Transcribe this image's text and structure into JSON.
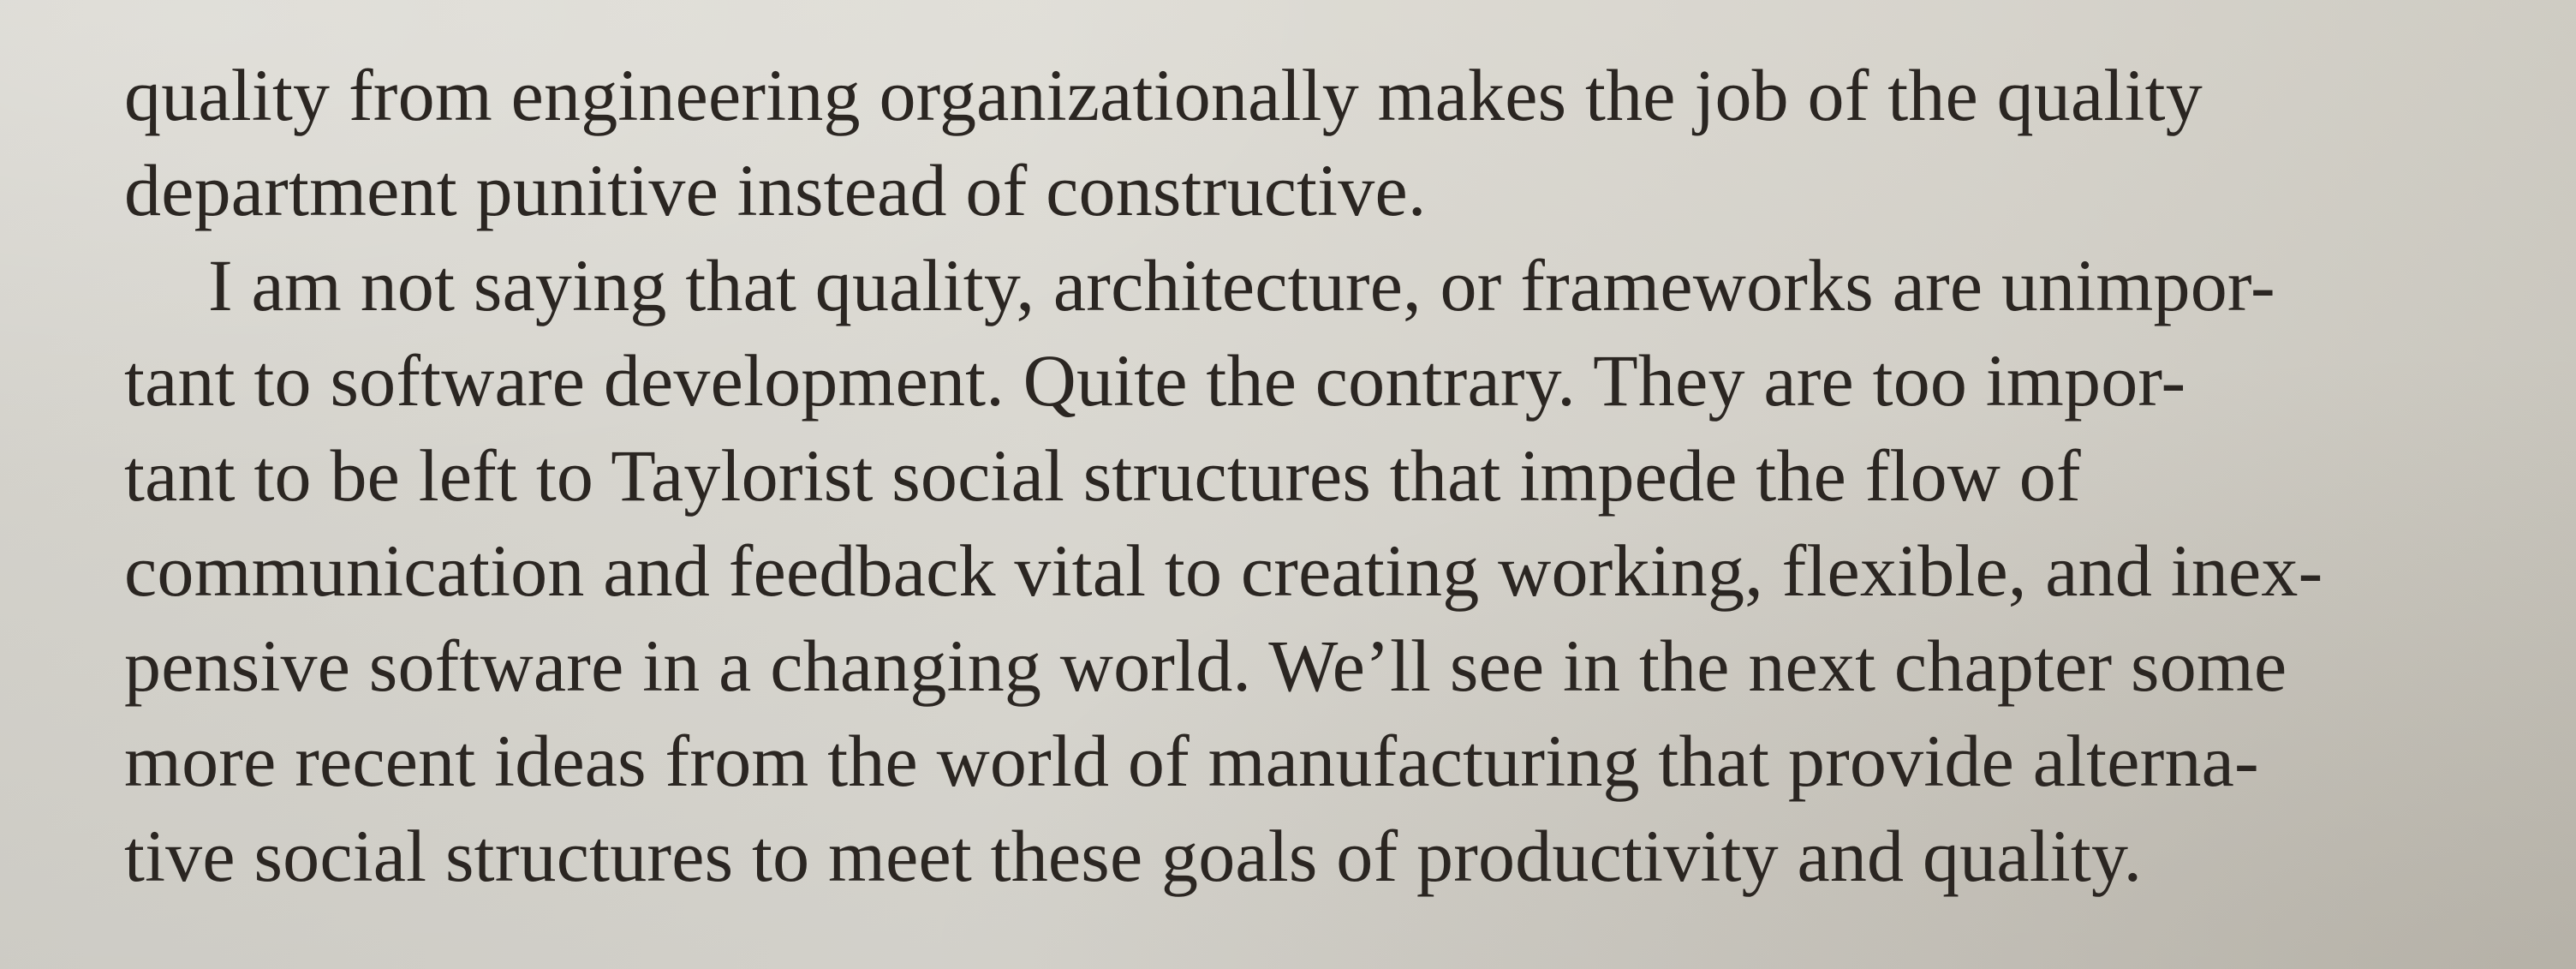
{
  "document": {
    "paragraphs": [
      {
        "lines": [
          "quality from engineering organizationally makes the job of the quality",
          "department punitive instead of constructive."
        ]
      },
      {
        "lines": [
          "I am not saying that quality, architecture, or frameworks are unimpor-",
          "tant to software development. Quite the contrary. They are too impor-",
          "tant to be left to Taylorist social structures that impede the flow of",
          "communication and feedback vital to creating working, flexible, and inex-",
          "pensive software in a changing world. We’ll see in the next chapter some",
          "more recent ideas from the world of manufacturing that provide alterna-",
          "tive social structures to meet these goals of productivity and quality."
        ]
      }
    ]
  }
}
